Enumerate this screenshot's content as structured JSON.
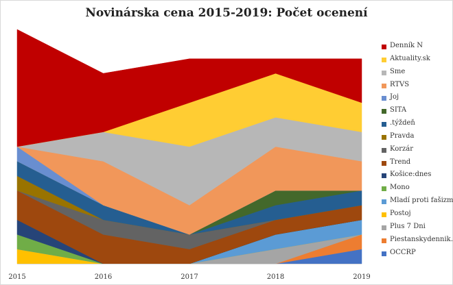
{
  "chart_data": {
    "type": "area",
    "title": "Novinárska cena 2015-2019: Počet ocenení",
    "x": [
      "2015",
      "2016",
      "2017",
      "2018",
      "2019"
    ],
    "stacked": true,
    "legend_position": "right",
    "series": [
      {
        "name": "OCCRP",
        "color": "#4472C4",
        "values": [
          0,
          0,
          0,
          0,
          1
        ]
      },
      {
        "name": "Piestanskydennik.sk",
        "color": "#ED7D31",
        "values": [
          0,
          0,
          0,
          0,
          1
        ]
      },
      {
        "name": "Plus 7 Dni",
        "color": "#A5A5A5",
        "values": [
          0,
          0,
          0,
          1,
          0
        ]
      },
      {
        "name": "Postoj",
        "color": "#FFC000",
        "values": [
          1,
          0,
          0,
          0,
          0
        ]
      },
      {
        "name": "Mladí proti fašizmu",
        "color": "#5B9BD5",
        "values": [
          0,
          0,
          0,
          1,
          1
        ]
      },
      {
        "name": "Mono",
        "color": "#70AD47",
        "values": [
          1,
          0,
          0,
          0,
          0
        ]
      },
      {
        "name": "Košice:dnes",
        "color": "#264478",
        "values": [
          1,
          0,
          0,
          0,
          0
        ]
      },
      {
        "name": "Trend",
        "color": "#9E480E",
        "values": [
          2,
          2,
          1,
          1,
          1
        ]
      },
      {
        "name": "Korzár",
        "color": "#636363",
        "values": [
          0,
          1,
          1,
          0,
          0
        ]
      },
      {
        "name": "Pravda",
        "color": "#997300",
        "values": [
          1,
          0,
          0,
          0,
          0
        ]
      },
      {
        "name": ".týždeň",
        "color": "#255E91",
        "values": [
          1,
          1,
          0,
          1,
          1
        ]
      },
      {
        "name": "SITA",
        "color": "#43682B",
        "values": [
          0,
          0,
          0,
          1,
          0
        ]
      },
      {
        "name": "Joj",
        "color": "#698ED0",
        "values": [
          1,
          0,
          0,
          0,
          0
        ]
      },
      {
        "name": "RTVS",
        "color": "#F1975A",
        "values": [
          0,
          3,
          2,
          3,
          2
        ]
      },
      {
        "name": "Sme",
        "color": "#B7B7B7",
        "values": [
          0,
          2,
          4,
          2,
          2
        ]
      },
      {
        "name": "Aktuality.sk",
        "color": "#FFCD33",
        "values": [
          0,
          0,
          3,
          3,
          2
        ]
      },
      {
        "name": "Denník N",
        "color": "#C00000",
        "values": [
          8,
          4,
          3,
          1,
          3
        ]
      }
    ],
    "legend_order": [
      "Denník N",
      "Aktuality.sk",
      "Sme",
      "RTVS",
      "Joj",
      "SITA",
      ".týždeň",
      "Pravda",
      "Korzár",
      "Trend",
      "Košice:dnes",
      "Mono",
      "Mladí proti fašizmu",
      "Postoj",
      "Plus 7 Dni",
      "Piestanskydennik.sk",
      "OCCRP"
    ],
    "ylim": [
      0,
      16
    ]
  }
}
